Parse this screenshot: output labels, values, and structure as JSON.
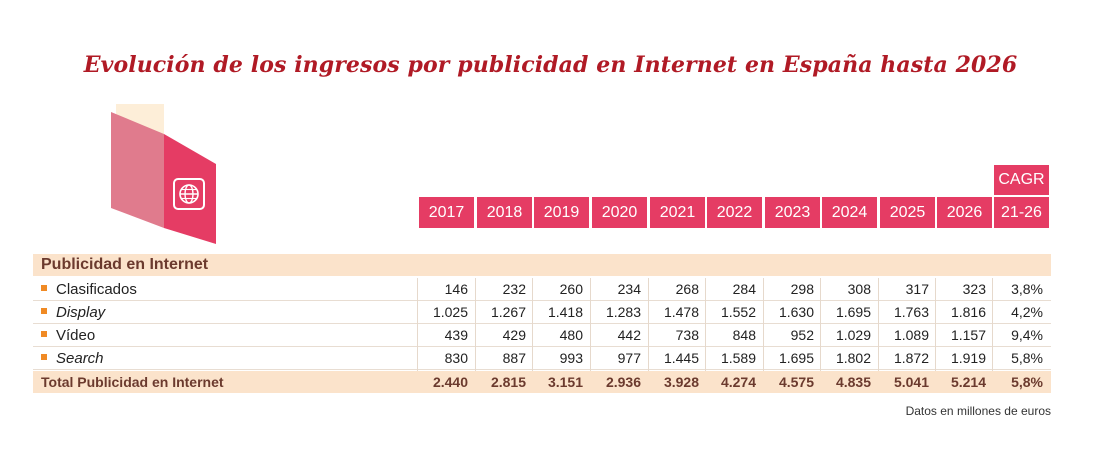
{
  "chart_data": {
    "type": "table",
    "title": "Evolución de los ingresos por publicidad en Internet en España hasta 2026",
    "section_title": "Publicidad en Internet",
    "columns": [
      "2017",
      "2018",
      "2019",
      "2020",
      "2021",
      "2022",
      "2023",
      "2024",
      "2025",
      "2026"
    ],
    "cagr_header": [
      "CAGR",
      "21-26"
    ],
    "rows": [
      {
        "label": "Clasificados",
        "italic": false,
        "values": [
          "146",
          "232",
          "260",
          "234",
          "268",
          "284",
          "298",
          "308",
          "317",
          "323"
        ],
        "cagr": "3,8%"
      },
      {
        "label": "Display",
        "italic": true,
        "values": [
          "1.025",
          "1.267",
          "1.418",
          "1.283",
          "1.478",
          "1.552",
          "1.630",
          "1.695",
          "1.763",
          "1.816"
        ],
        "cagr": "4,2%"
      },
      {
        "label": "Vídeo",
        "italic": false,
        "values": [
          "439",
          "429",
          "480",
          "442",
          "738",
          "848",
          "952",
          "1.029",
          "1.089",
          "1.157"
        ],
        "cagr": "9,4%"
      },
      {
        "label": "Search",
        "italic": true,
        "values": [
          "830",
          "887",
          "993",
          "977",
          "1.445",
          "1.589",
          "1.695",
          "1.802",
          "1.872",
          "1.919"
        ],
        "cagr": "5,8%"
      }
    ],
    "total": {
      "label": "Total Publicidad en Internet",
      "values": [
        "2.440",
        "2.815",
        "3.151",
        "2.936",
        "3.928",
        "4.274",
        "4.575",
        "4.835",
        "5.041",
        "5.214"
      ],
      "cagr": "5,8%"
    },
    "note": "Datos en millones de euros"
  },
  "colors": {
    "title": "#b01a25",
    "header_bg": "#e53c64",
    "band_bg": "#fbe3cb",
    "bullet": "#f08a24",
    "bold_text": "#6b3a2e"
  },
  "logo_icon": "globe-icon"
}
